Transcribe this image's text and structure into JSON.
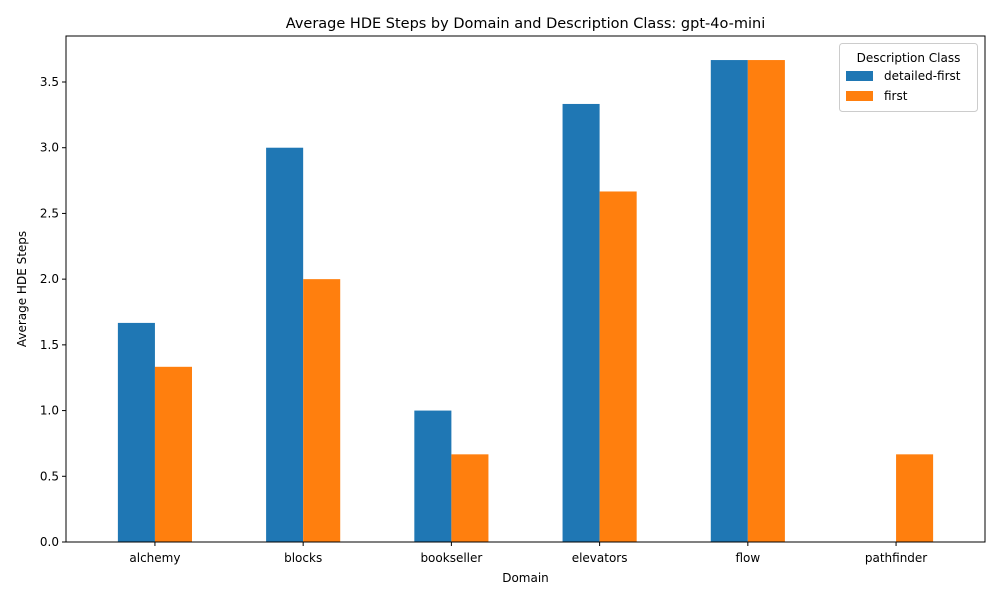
{
  "chart_data": {
    "type": "bar",
    "title": "Average HDE Steps by Domain and Description Class: gpt-4o-mini",
    "xlabel": "Domain",
    "ylabel": "Average HDE Steps",
    "categories": [
      "alchemy",
      "blocks",
      "bookseller",
      "elevators",
      "flow",
      "pathfinder"
    ],
    "series": [
      {
        "name": "detailed-first",
        "color": "#1f77b4",
        "values": [
          1.667,
          3.0,
          1.0,
          3.333,
          3.667,
          null
        ]
      },
      {
        "name": "first",
        "color": "#ff7f0e",
        "values": [
          1.333,
          2.0,
          0.667,
          2.667,
          3.667,
          0.667
        ]
      }
    ],
    "ylim": [
      0,
      3.85
    ],
    "yticks": [
      0.0,
      0.5,
      1.0,
      1.5,
      2.0,
      2.5,
      3.0,
      3.5
    ],
    "ytick_labels": [
      "0.0",
      "0.5",
      "1.0",
      "1.5",
      "2.0",
      "2.5",
      "3.0",
      "3.5"
    ],
    "grid": false,
    "legend": {
      "title": "Description Class",
      "placement": "top-right"
    }
  }
}
